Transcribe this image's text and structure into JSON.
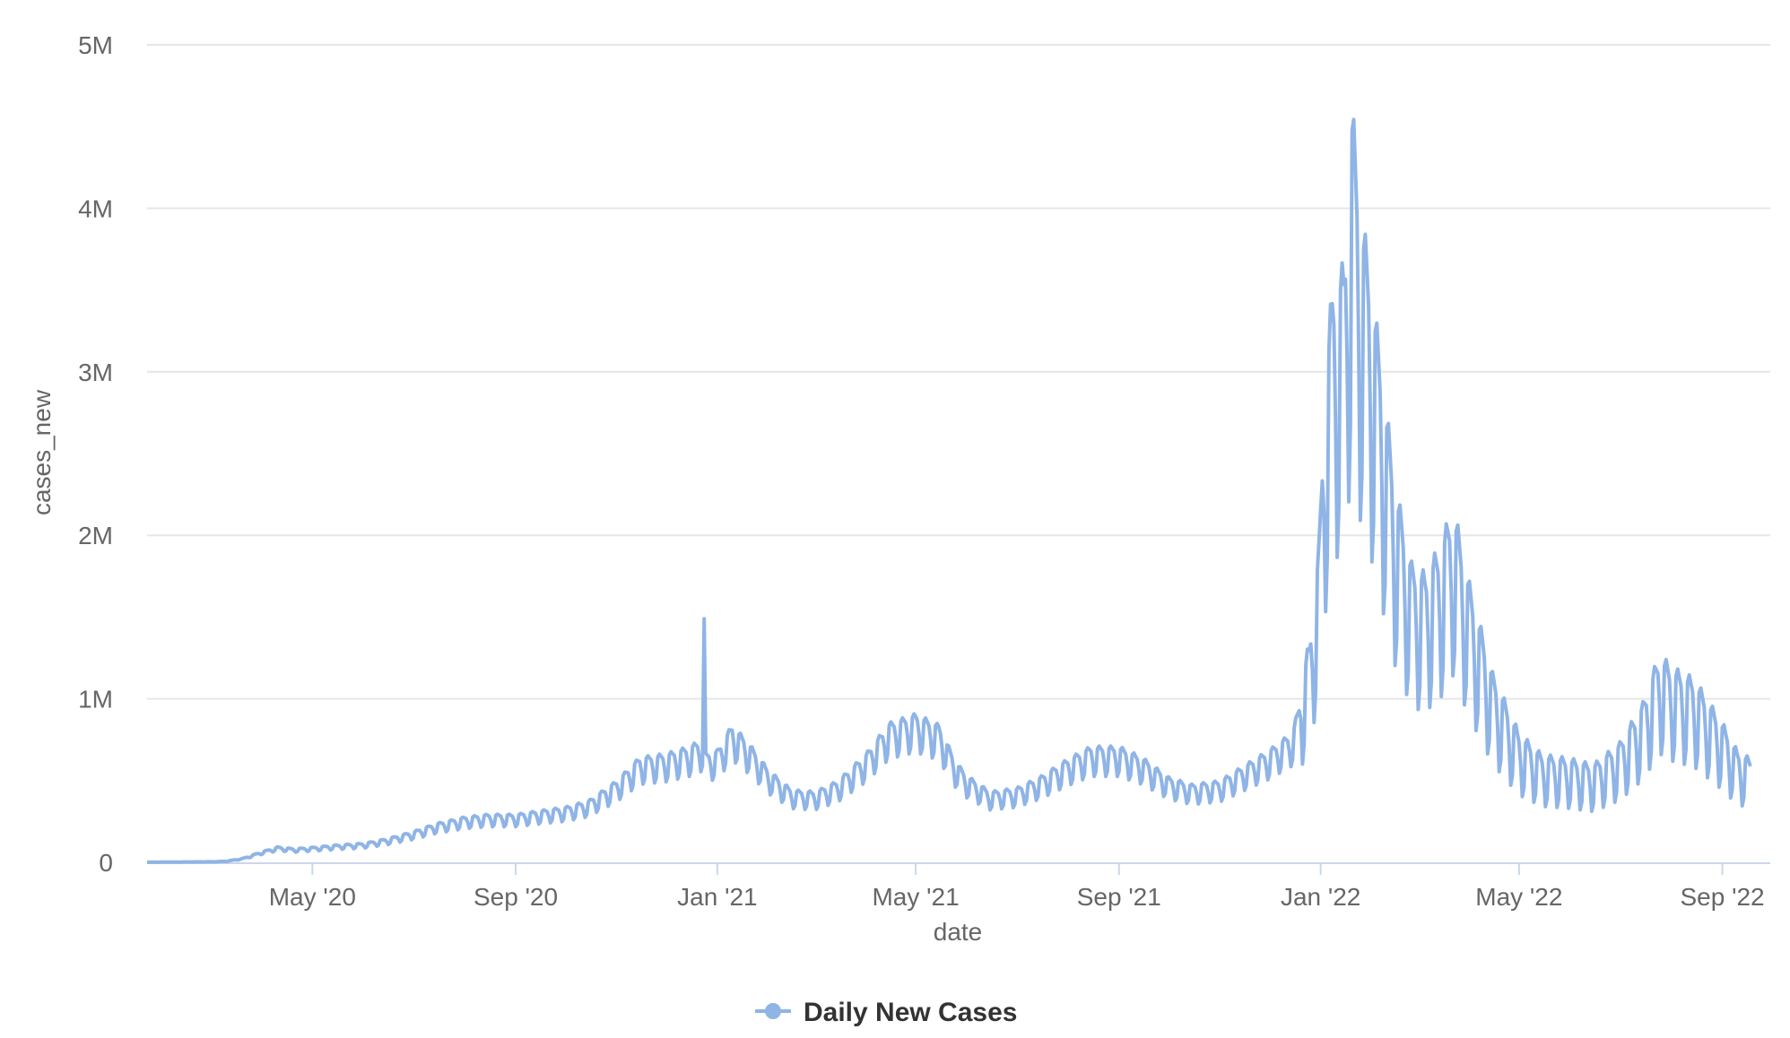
{
  "chart_data": {
    "type": "line",
    "title": "",
    "xlabel": "date",
    "ylabel": "cases_new",
    "ylim": [
      0,
      5000000
    ],
    "yticks": [
      {
        "value": 0,
        "label": "0"
      },
      {
        "value": 1000000,
        "label": "1M"
      },
      {
        "value": 2000000,
        "label": "2M"
      },
      {
        "value": 3000000,
        "label": "3M"
      },
      {
        "value": 4000000,
        "label": "4M"
      },
      {
        "value": 5000000,
        "label": "5M"
      }
    ],
    "xlim": [
      "2020-01-22",
      "2022-09-30"
    ],
    "xticks": [
      {
        "date": "2020-05-01",
        "label": "May '20"
      },
      {
        "date": "2020-09-01",
        "label": "Sep '20"
      },
      {
        "date": "2021-01-01",
        "label": "Jan '21"
      },
      {
        "date": "2021-05-01",
        "label": "May '21"
      },
      {
        "date": "2021-09-01",
        "label": "Sep '21"
      },
      {
        "date": "2022-01-01",
        "label": "Jan '22"
      },
      {
        "date": "2022-05-01",
        "label": "May '22"
      },
      {
        "date": "2022-09-01",
        "label": "Sep '22"
      }
    ],
    "grid": true,
    "legend_position": "bottom-center",
    "series": [
      {
        "name": "Daily New Cases",
        "color": "#8fb4e6",
        "points": [
          [
            "2020-01-22",
            500
          ],
          [
            "2020-02-15",
            2000
          ],
          [
            "2020-03-01",
            3000
          ],
          [
            "2020-03-10",
            6000
          ],
          [
            "2020-03-20",
            22000
          ],
          [
            "2020-04-01",
            60000
          ],
          [
            "2020-04-10",
            85000
          ],
          [
            "2020-04-20",
            75000
          ],
          [
            "2020-05-01",
            83000
          ],
          [
            "2020-05-15",
            95000
          ],
          [
            "2020-06-01",
            105000
          ],
          [
            "2020-06-15",
            130000
          ],
          [
            "2020-07-01",
            170000
          ],
          [
            "2020-07-15",
            215000
          ],
          [
            "2020-08-01",
            250000
          ],
          [
            "2020-08-15",
            265000
          ],
          [
            "2020-09-01",
            265000
          ],
          [
            "2020-09-15",
            285000
          ],
          [
            "2020-10-01",
            305000
          ],
          [
            "2020-10-15",
            340000
          ],
          [
            "2020-11-01",
            450000
          ],
          [
            "2020-11-15",
            580000
          ],
          [
            "2020-12-01",
            600000
          ],
          [
            "2020-12-15",
            640000
          ],
          [
            "2020-12-23",
            680000
          ],
          [
            "2020-12-24",
            1490000
          ],
          [
            "2020-12-25",
            600000
          ],
          [
            "2021-01-01",
            620000
          ],
          [
            "2021-01-10",
            760000
          ],
          [
            "2021-01-20",
            660000
          ],
          [
            "2021-02-01",
            510000
          ],
          [
            "2021-02-15",
            400000
          ],
          [
            "2021-03-01",
            390000
          ],
          [
            "2021-03-15",
            450000
          ],
          [
            "2021-04-01",
            600000
          ],
          [
            "2021-04-15",
            770000
          ],
          [
            "2021-05-01",
            820000
          ],
          [
            "2021-05-15",
            760000
          ],
          [
            "2021-05-25",
            560000
          ],
          [
            "2021-06-01",
            480000
          ],
          [
            "2021-06-15",
            390000
          ],
          [
            "2021-07-01",
            410000
          ],
          [
            "2021-07-15",
            470000
          ],
          [
            "2021-08-01",
            570000
          ],
          [
            "2021-08-15",
            640000
          ],
          [
            "2021-09-01",
            640000
          ],
          [
            "2021-09-15",
            580000
          ],
          [
            "2021-10-01",
            470000
          ],
          [
            "2021-10-15",
            430000
          ],
          [
            "2021-11-01",
            450000
          ],
          [
            "2021-11-15",
            530000
          ],
          [
            "2021-12-01",
            620000
          ],
          [
            "2021-12-15",
            720000
          ],
          [
            "2021-12-25",
            1100000
          ],
          [
            "2021-12-31",
            1600000
          ],
          [
            "2022-01-03",
            2300000
          ],
          [
            "2022-01-08",
            2900000
          ],
          [
            "2022-01-15",
            3000000
          ],
          [
            "2022-01-20",
            3800000
          ],
          [
            "2022-01-25",
            3300000
          ],
          [
            "2022-02-01",
            2900000
          ],
          [
            "2022-02-08",
            2400000
          ],
          [
            "2022-02-15",
            1900000
          ],
          [
            "2022-02-25",
            1500000
          ],
          [
            "2022-03-05",
            1450000
          ],
          [
            "2022-03-15",
            1600000
          ],
          [
            "2022-03-22",
            1800000
          ],
          [
            "2022-04-01",
            1400000
          ],
          [
            "2022-04-15",
            950000
          ],
          [
            "2022-05-01",
            650000
          ],
          [
            "2022-05-15",
            540000
          ],
          [
            "2022-06-01",
            520000
          ],
          [
            "2022-06-15",
            490000
          ],
          [
            "2022-07-01",
            600000
          ],
          [
            "2022-07-15",
            800000
          ],
          [
            "2022-07-25",
            1050000
          ],
          [
            "2022-08-01",
            980000
          ],
          [
            "2022-08-15",
            920000
          ],
          [
            "2022-09-01",
            700000
          ],
          [
            "2022-09-10",
            560000
          ],
          [
            "2022-09-18",
            520000
          ]
        ]
      }
    ]
  }
}
